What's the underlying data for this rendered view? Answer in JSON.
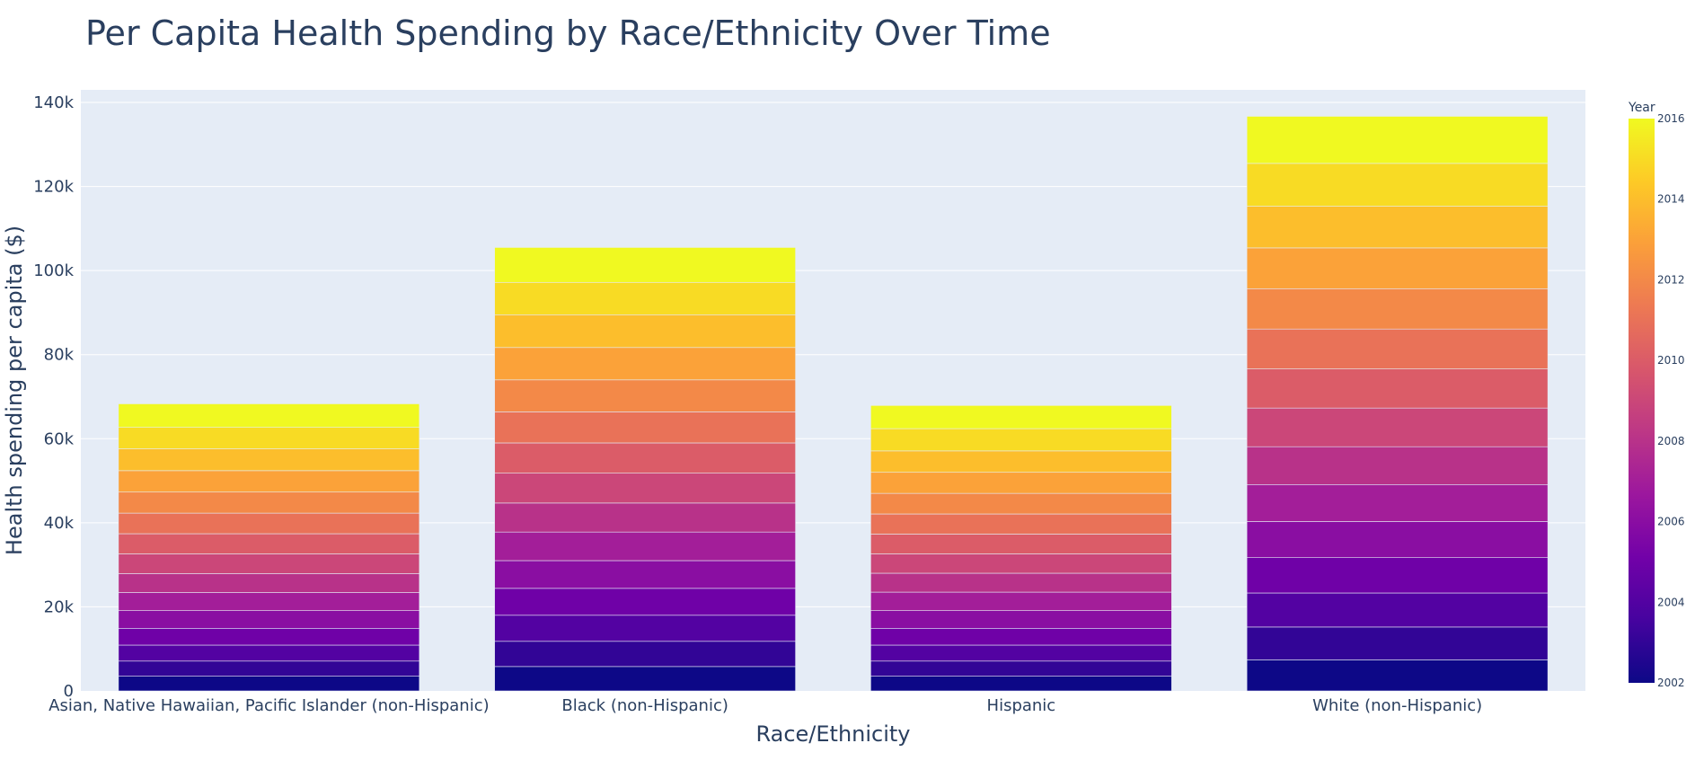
{
  "chart_data": {
    "type": "bar",
    "stacked": true,
    "title": "Per Capita Health Spending by Race/Ethnicity Over Time",
    "xlabel": "Race/Ethnicity",
    "ylabel": "Health spending per capita ($)",
    "ylim": [
      0,
      143000
    ],
    "yticks": [
      0,
      20000,
      40000,
      60000,
      80000,
      100000,
      120000,
      140000
    ],
    "ytick_labels": [
      "0",
      "20k",
      "40k",
      "60k",
      "80k",
      "100k",
      "120k",
      "140k"
    ],
    "grid": true,
    "categories": [
      "Asian, Native Hawaiian, Pacific Islander (non-Hispanic)",
      "Black (non-Hispanic)",
      "Hispanic",
      "White (non-Hispanic)"
    ],
    "series": [
      {
        "year": 2002,
        "values": [
          3500,
          5800,
          3500,
          7400
        ]
      },
      {
        "year": 2003,
        "values": [
          3600,
          6000,
          3600,
          7800
        ]
      },
      {
        "year": 2004,
        "values": [
          3800,
          6200,
          3800,
          8100
        ]
      },
      {
        "year": 2005,
        "values": [
          4000,
          6400,
          4000,
          8400
        ]
      },
      {
        "year": 2006,
        "values": [
          4200,
          6600,
          4200,
          8600
        ]
      },
      {
        "year": 2007,
        "values": [
          4300,
          6800,
          4400,
          8800
        ]
      },
      {
        "year": 2008,
        "values": [
          4500,
          6900,
          4500,
          9000
        ]
      },
      {
        "year": 2009,
        "values": [
          4700,
          7100,
          4600,
          9200
        ]
      },
      {
        "year": 2010,
        "values": [
          4800,
          7200,
          4700,
          9300
        ]
      },
      {
        "year": 2011,
        "values": [
          4900,
          7400,
          4800,
          9500
        ]
      },
      {
        "year": 2012,
        "values": [
          5000,
          7600,
          4900,
          9600
        ]
      },
      {
        "year": 2013,
        "values": [
          5100,
          7700,
          5000,
          9700
        ]
      },
      {
        "year": 2014,
        "values": [
          5200,
          7800,
          5100,
          9900
        ]
      },
      {
        "year": 2015,
        "values": [
          5100,
          7700,
          5300,
          10200
        ]
      },
      {
        "year": 2016,
        "values": [
          5600,
          8300,
          5500,
          11200
        ]
      }
    ],
    "colorbar": {
      "title": "Year",
      "range": [
        2002,
        2016
      ],
      "ticks": [
        2002,
        2004,
        2006,
        2008,
        2010,
        2012,
        2014,
        2016
      ],
      "colorscale": [
        "#0d0887",
        "#46039f",
        "#7201a8",
        "#9c179e",
        "#bd3786",
        "#d8576b",
        "#ed7953",
        "#fb9f3a",
        "#fdca26",
        "#f0f921"
      ]
    },
    "plot_bgcolor": "#e5ecf6",
    "font_color": "#2a3f5f"
  }
}
